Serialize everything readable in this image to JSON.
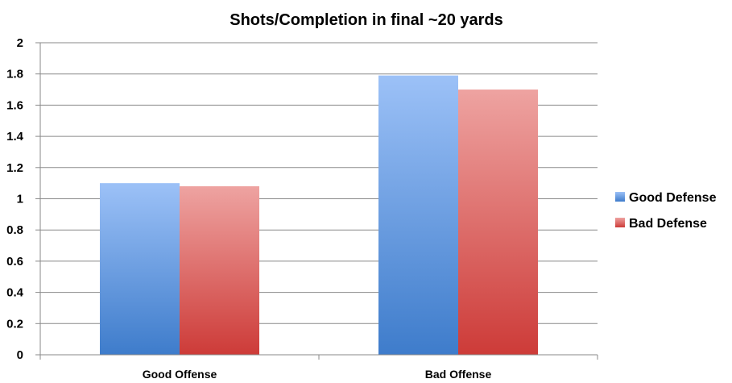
{
  "chart_data": {
    "type": "bar",
    "title": "Shots/Completion in final ~20 yards",
    "xlabel": "",
    "ylabel": "",
    "categories": [
      "Good Offense",
      "Bad Offense"
    ],
    "series": [
      {
        "name": "Good Defense",
        "values": [
          1.1,
          1.79
        ],
        "color_top": "#9cc1f7",
        "color_bottom": "#3e7ccb"
      },
      {
        "name": "Bad Defense",
        "values": [
          1.08,
          1.7
        ],
        "color_top": "#eea3a1",
        "color_bottom": "#cd3b38"
      }
    ],
    "ylim": [
      0,
      2
    ],
    "yticks": [
      "0",
      "0.2",
      "0.4",
      "0.6",
      "0.8",
      "1",
      "1.2",
      "1.4",
      "1.6",
      "1.8",
      "2"
    ],
    "grid": true,
    "legend_position": "right"
  }
}
